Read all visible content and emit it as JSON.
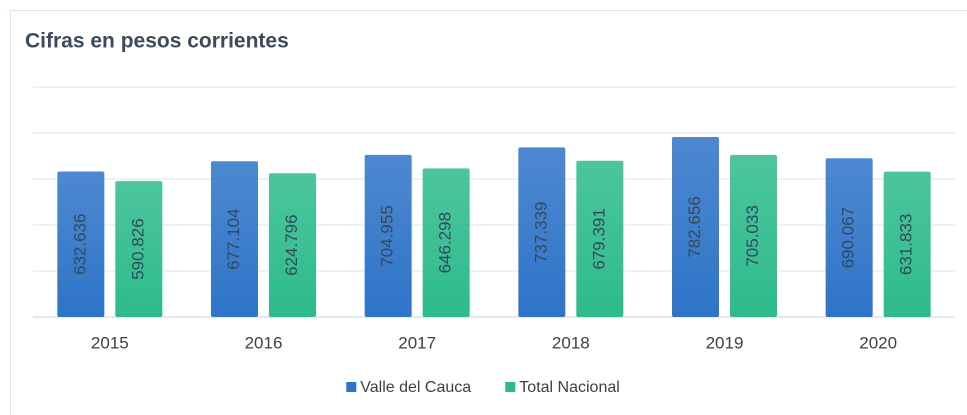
{
  "chart_data": {
    "type": "bar",
    "title": "Cifras en pesos corrientes",
    "categories": [
      "2015",
      "2016",
      "2017",
      "2018",
      "2019",
      "2020"
    ],
    "series": [
      {
        "name": "Valle del Cauca",
        "color": "#2e74c8",
        "values": [
          632636,
          677104,
          704955,
          737339,
          782656,
          690067
        ],
        "value_labels": [
          "632.636",
          "677.104",
          "704.955",
          "737.339",
          "782.656",
          "690.067"
        ]
      },
      {
        "name": "Total Nacional",
        "color": "#2dbb8c",
        "values": [
          590826,
          624796,
          646298,
          679391,
          705033,
          631833
        ],
        "value_labels": [
          "590.826",
          "624.796",
          "646.298",
          "679.391",
          "705.033",
          "631.833"
        ]
      }
    ],
    "ylim": [
      0,
      1000000
    ],
    "yticks": [
      0,
      200000,
      400000,
      600000,
      800000,
      1000000
    ],
    "grid": true,
    "legend": "bottom"
  }
}
